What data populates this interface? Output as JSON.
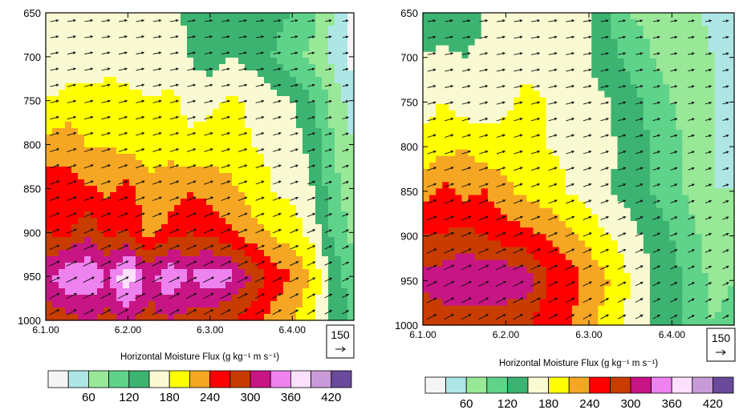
{
  "palette": [
    "#f5f5f5",
    "#aee6e6",
    "#98e898",
    "#5fd38a",
    "#3cb371",
    "#fafad2",
    "#ffff00",
    "#f5a623",
    "#ff0000",
    "#c83c00",
    "#c71585",
    "#ee82ee",
    "#fde0fd",
    "#c89bd8",
    "#6a4a9a"
  ],
  "chart_data": [
    {
      "type": "heatmap",
      "title": "",
      "xlabel": "Horizontal Moisture Flux (g kg⁻¹ m s⁻¹)",
      "ylabel": "",
      "x_ticks": [
        "6.1.00",
        "6.2.00",
        "6.3.00",
        "6.4.00"
      ],
      "y_ticks": [
        "650",
        "700",
        "750",
        "800",
        "850",
        "900",
        "950",
        "1000"
      ],
      "ylim": [
        1000,
        650
      ],
      "vector_reference": "150",
      "colorbar": {
        "levels": [
          30,
          60,
          90,
          120,
          150,
          180,
          210,
          240,
          270,
          300,
          330,
          360,
          390,
          420
        ],
        "labels": [
          "60",
          "120",
          "180",
          "240",
          "300",
          "360",
          "420"
        ]
      },
      "x": [
        0,
        0.25,
        0.5,
        0.75,
        1,
        1.25,
        1.5,
        1.75,
        2,
        2.25,
        2.5,
        2.75,
        3,
        3.25,
        3.5,
        3.75
      ],
      "y": [
        650,
        700,
        750,
        800,
        850,
        900,
        950,
        1000
      ],
      "z": [
        [
          150,
          165,
          160,
          170,
          160,
          150,
          170,
          140,
          120,
          145,
          140,
          130,
          120,
          100,
          60,
          20
        ],
        [
          150,
          160,
          170,
          165,
          165,
          155,
          160,
          150,
          130,
          150,
          140,
          120,
          100,
          80,
          50,
          20
        ],
        [
          180,
          190,
          185,
          195,
          190,
          180,
          190,
          170,
          175,
          185,
          175,
          160,
          150,
          120,
          80,
          40
        ],
        [
          220,
          230,
          210,
          210,
          200,
          190,
          200,
          185,
          190,
          195,
          180,
          175,
          165,
          140,
          90,
          60
        ],
        [
          260,
          250,
          245,
          230,
          250,
          220,
          225,
          235,
          230,
          215,
          200,
          180,
          170,
          150,
          100,
          70
        ],
        [
          270,
          265,
          290,
          265,
          270,
          230,
          250,
          270,
          260,
          245,
          220,
          205,
          195,
          170,
          110,
          80
        ],
        [
          320,
          350,
          360,
          330,
          390,
          320,
          360,
          330,
          350,
          340,
          300,
          260,
          240,
          200,
          140,
          100
        ],
        [
          280,
          290,
          300,
          290,
          300,
          280,
          300,
          290,
          280,
          270,
          250,
          230,
          210,
          190,
          140,
          110
        ]
      ]
    },
    {
      "type": "heatmap",
      "title": "",
      "xlabel": "Horizontal Moisture Flux (g kg⁻¹ m s⁻¹)",
      "ylabel": "",
      "x_ticks": [
        "6.1.00",
        "6.2.00",
        "6.3.00",
        "6.4.00"
      ],
      "y_ticks": [
        "650",
        "700",
        "750",
        "800",
        "850",
        "900",
        "950",
        "1000"
      ],
      "ylim": [
        1000,
        650
      ],
      "vector_reference": "150",
      "colorbar": {
        "levels": [
          30,
          60,
          90,
          120,
          150,
          180,
          210,
          240,
          270,
          300,
          330,
          360,
          390,
          420
        ],
        "labels": [
          "60",
          "120",
          "180",
          "240",
          "300",
          "360",
          "420"
        ]
      },
      "x": [
        0,
        0.25,
        0.5,
        0.75,
        1,
        1.25,
        1.5,
        1.75,
        2,
        2.25,
        2.5,
        2.75,
        3,
        3.25,
        3.5,
        3.75
      ],
      "y": [
        650,
        700,
        750,
        800,
        850,
        900,
        950,
        1000
      ],
      "z": [
        [
          130,
          120,
          130,
          150,
          160,
          170,
          180,
          170,
          150,
          120,
          90,
          80,
          80,
          70,
          50,
          40
        ],
        [
          150,
          160,
          150,
          160,
          170,
          175,
          170,
          160,
          150,
          130,
          110,
          90,
          80,
          70,
          60,
          50
        ],
        [
          170,
          180,
          160,
          170,
          175,
          185,
          180,
          170,
          160,
          150,
          130,
          110,
          90,
          70,
          60,
          50
        ],
        [
          190,
          200,
          210,
          190,
          190,
          200,
          180,
          175,
          165,
          155,
          140,
          120,
          100,
          80,
          60,
          50
        ],
        [
          230,
          250,
          230,
          240,
          220,
          200,
          190,
          180,
          165,
          150,
          140,
          120,
          100,
          80,
          60,
          60
        ],
        [
          270,
          270,
          280,
          270,
          255,
          250,
          240,
          220,
          200,
          180,
          160,
          140,
          120,
          100,
          70,
          80
        ],
        [
          310,
          320,
          330,
          320,
          330,
          320,
          270,
          260,
          230,
          210,
          180,
          150,
          130,
          110,
          80,
          90
        ],
        [
          270,
          280,
          280,
          280,
          270,
          270,
          250,
          240,
          220,
          190,
          170,
          150,
          130,
          110,
          90,
          100
        ]
      ]
    }
  ]
}
